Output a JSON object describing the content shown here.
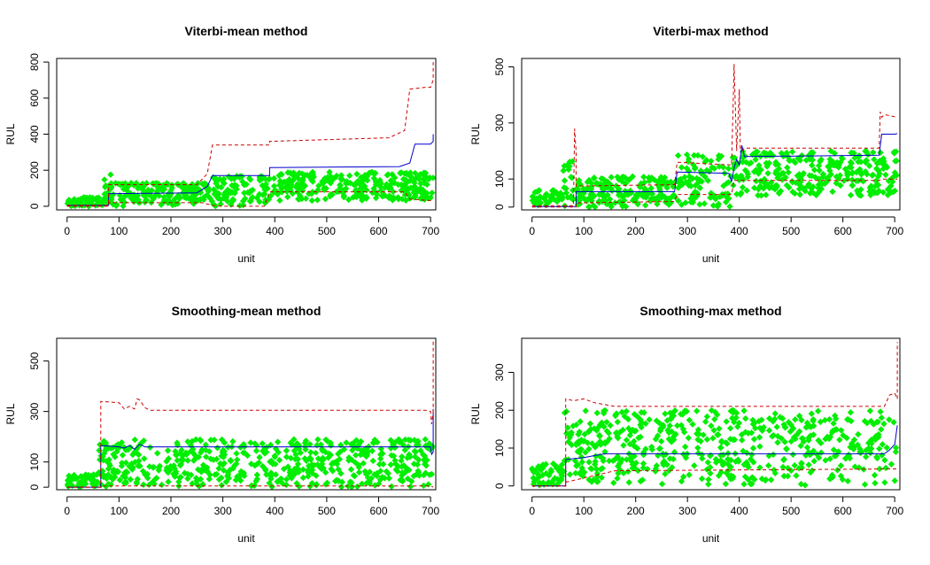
{
  "chart_data": [
    {
      "type": "scatter",
      "title": "Viterbi-mean method",
      "xlabel": "unit",
      "ylabel": "RUL",
      "xlim": [
        -20,
        710
      ],
      "ylim": [
        -20,
        820
      ],
      "xticks": [
        0,
        100,
        200,
        300,
        400,
        500,
        600,
        700
      ],
      "yticks": [
        0,
        200,
        400,
        600,
        800
      ],
      "point_color": "#00ee00",
      "series": [
        {
          "style": "line",
          "color": "#0000cc",
          "dash": false,
          "x": [
            0,
            80,
            80,
            250,
            270,
            280,
            390,
            390,
            640,
            660,
            670,
            700,
            705,
            705
          ],
          "y": [
            5,
            5,
            70,
            75,
            110,
            170,
            170,
            215,
            220,
            240,
            345,
            345,
            360,
            400
          ]
        },
        {
          "style": "line",
          "color": "#cc0000",
          "dash": true,
          "x": [
            0,
            80,
            80,
            250,
            270,
            280,
            390,
            390,
            620,
            650,
            660,
            690,
            700,
            705,
            705
          ],
          "y": [
            5,
            5,
            120,
            120,
            180,
            340,
            340,
            360,
            380,
            420,
            650,
            660,
            660,
            700,
            800
          ]
        },
        {
          "style": "line",
          "color": "#cc0000",
          "dash": true,
          "x": [
            0,
            80,
            80,
            260,
            280,
            300,
            380,
            390,
            650,
            660,
            705
          ],
          "y": [
            0,
            0,
            20,
            20,
            5,
            0,
            0,
            80,
            80,
            40,
            30
          ]
        }
      ],
      "points": [
        {
          "x": [
            0,
            70
          ],
          "y": [
            0,
            50
          ],
          "n": 60
        },
        {
          "x": [
            70,
            90
          ],
          "y": [
            0,
            200
          ],
          "n": 15
        },
        {
          "x": [
            80,
            280
          ],
          "y": [
            0,
            130
          ],
          "n": 180
        },
        {
          "x": [
            280,
            390
          ],
          "y": [
            0,
            170
          ],
          "n": 100
        },
        {
          "x": [
            390,
            705
          ],
          "y": [
            30,
            190
          ],
          "n": 300
        }
      ]
    },
    {
      "type": "scatter",
      "title": "Viterbi-max method",
      "xlabel": "unit",
      "ylabel": "RUL",
      "xlim": [
        -20,
        710
      ],
      "ylim": [
        -10,
        530
      ],
      "xticks": [
        0,
        100,
        200,
        300,
        400,
        500,
        600,
        700
      ],
      "yticks": [
        0,
        100,
        300,
        500
      ],
      "point_color": "#00ee00",
      "series": [
        {
          "style": "line",
          "color": "#0000cc",
          "dash": false,
          "x": [
            0,
            85,
            85,
            275,
            280,
            380,
            385,
            390,
            395,
            400,
            405,
            410,
            670,
            675,
            700,
            705
          ],
          "y": [
            2,
            2,
            55,
            55,
            125,
            120,
            90,
            140,
            170,
            150,
            220,
            180,
            185,
            260,
            260,
            262
          ]
        },
        {
          "style": "line",
          "color": "#cc0000",
          "dash": true,
          "x": [
            0,
            80,
            82,
            85,
            85,
            275,
            280,
            385,
            388,
            390,
            395,
            400,
            402,
            405,
            410,
            670,
            672,
            675,
            680,
            705
          ],
          "y": [
            5,
            5,
            280,
            200,
            75,
            80,
            160,
            150,
            360,
            510,
            200,
            420,
            210,
            200,
            210,
            210,
            340,
            320,
            330,
            320
          ]
        },
        {
          "style": "line",
          "color": "#cc0000",
          "dash": true,
          "x": [
            0,
            85,
            85,
            275,
            280,
            385,
            390,
            395,
            405,
            670,
            675,
            705
          ],
          "y": [
            0,
            0,
            15,
            20,
            45,
            45,
            95,
            95,
            95,
            95,
            100,
            100
          ]
        }
      ],
      "points": [
        {
          "x": [
            0,
            60
          ],
          "y": [
            0,
            60
          ],
          "n": 50
        },
        {
          "x": [
            60,
            80
          ],
          "y": [
            0,
            170
          ],
          "n": 20
        },
        {
          "x": [
            85,
            280
          ],
          "y": [
            0,
            110
          ],
          "n": 180
        },
        {
          "x": [
            280,
            390
          ],
          "y": [
            0,
            190
          ],
          "n": 100
        },
        {
          "x": [
            390,
            705
          ],
          "y": [
            40,
            200
          ],
          "n": 300
        }
      ]
    },
    {
      "type": "scatter",
      "title": "Smoothing-mean method",
      "xlabel": "unit",
      "ylabel": "RUL",
      "xlim": [
        -20,
        710
      ],
      "ylim": [
        -10,
        590
      ],
      "xticks": [
        0,
        100,
        200,
        300,
        400,
        500,
        600,
        700
      ],
      "yticks": [
        0,
        100,
        300,
        500
      ],
      "point_color": "#00ee00",
      "series": [
        {
          "style": "line",
          "color": "#0000cc",
          "dash": false,
          "x": [
            0,
            65,
            65,
            100,
            110,
            120,
            130,
            140,
            150,
            700,
            702,
            705,
            705
          ],
          "y": [
            0,
            0,
            165,
            160,
            155,
            165,
            150,
            170,
            160,
            160,
            130,
            140,
            310
          ]
        },
        {
          "style": "line",
          "color": "#cc0000",
          "dash": true,
          "x": [
            0,
            65,
            65,
            100,
            110,
            120,
            130,
            135,
            140,
            150,
            160,
            690,
            700,
            702,
            705,
            705
          ],
          "y": [
            0,
            0,
            340,
            335,
            310,
            320,
            310,
            350,
            345,
            315,
            305,
            305,
            300,
            250,
            300,
            580
          ]
        },
        {
          "style": "line",
          "color": "#cc0000",
          "dash": true,
          "x": [
            0,
            65,
            65,
            700,
            705
          ],
          "y": [
            0,
            0,
            5,
            5,
            0
          ]
        }
      ],
      "points": [
        {
          "x": [
            0,
            60
          ],
          "y": [
            0,
            50
          ],
          "n": 50
        },
        {
          "x": [
            60,
            160
          ],
          "y": [
            0,
            190
          ],
          "n": 100
        },
        {
          "x": [
            160,
            705
          ],
          "y": [
            0,
            190
          ],
          "n": 450
        }
      ]
    },
    {
      "type": "scatter",
      "title": "Smoothing-max method",
      "xlabel": "unit",
      "ylabel": "RUL",
      "xlim": [
        -20,
        710
      ],
      "ylim": [
        -10,
        390
      ],
      "xticks": [
        0,
        100,
        200,
        300,
        400,
        500,
        600,
        700
      ],
      "yticks": [
        0,
        100,
        200,
        300
      ],
      "point_color": "#00ee00",
      "series": [
        {
          "style": "line",
          "color": "#0000cc",
          "dash": false,
          "x": [
            0,
            65,
            65,
            100,
            120,
            140,
            160,
            680,
            690,
            700,
            705
          ],
          "y": [
            0,
            0,
            70,
            75,
            80,
            85,
            85,
            85,
            95,
            110,
            160
          ]
        },
        {
          "style": "line",
          "color": "#cc0000",
          "dash": true,
          "x": [
            0,
            65,
            65,
            80,
            100,
            120,
            140,
            160,
            680,
            690,
            700,
            705,
            705
          ],
          "y": [
            0,
            0,
            230,
            225,
            230,
            220,
            215,
            210,
            210,
            240,
            245,
            230,
            380
          ]
        },
        {
          "style": "line",
          "color": "#cc0000",
          "dash": true,
          "x": [
            0,
            65,
            65,
            160,
            705
          ],
          "y": [
            0,
            0,
            10,
            40,
            45
          ]
        }
      ],
      "points": [
        {
          "x": [
            0,
            60
          ],
          "y": [
            0,
            60
          ],
          "n": 50
        },
        {
          "x": [
            60,
            200
          ],
          "y": [
            0,
            200
          ],
          "n": 150
        },
        {
          "x": [
            200,
            705
          ],
          "y": [
            0,
            200
          ],
          "n": 400
        }
      ]
    }
  ]
}
